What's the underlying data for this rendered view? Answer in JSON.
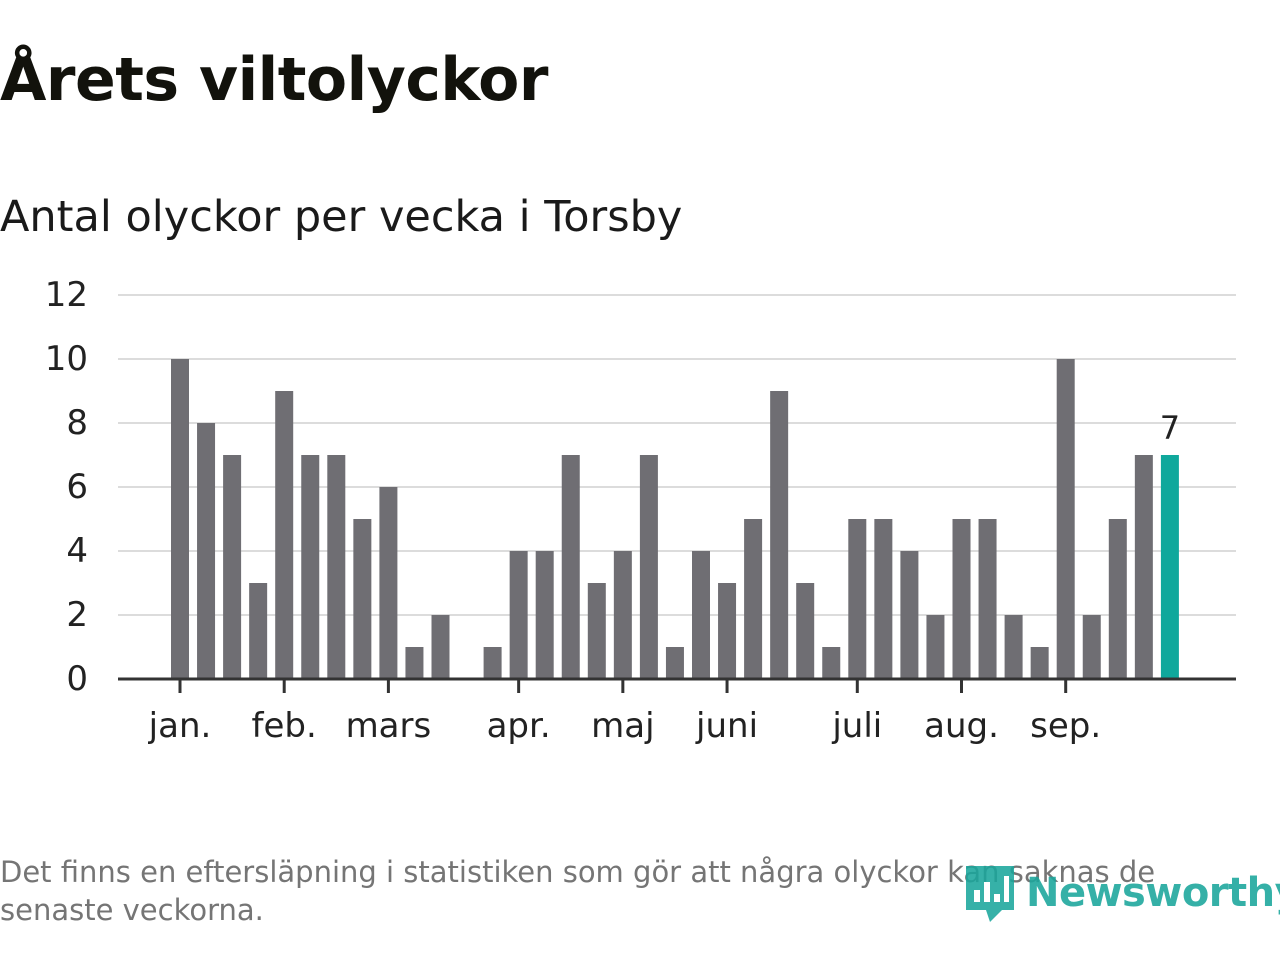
{
  "title": "Årets viltolyckor",
  "subtitle": "Antal olyckor per vecka i Torsby",
  "footnote": "Det finns en eftersläpning i statistiken som gör att några olyckor kan saknas de senaste veckorna.",
  "brand": {
    "name": "Newsworthy",
    "icon": "newsworthy-logo-icon"
  },
  "colors": {
    "bar": "#6f6e73",
    "highlight": "#0fa89c",
    "grid": "#dcdcdc",
    "axis": "#333333",
    "text": "#222222"
  },
  "chart_data": {
    "type": "bar",
    "title": "Antal olyckor per vecka i Torsby",
    "xlabel": "",
    "ylabel": "",
    "ylim": [
      0,
      12
    ],
    "yticks": [
      0,
      2,
      4,
      6,
      8,
      10,
      12
    ],
    "grid": true,
    "month_labels": [
      {
        "label": "jan.",
        "week_index": 0
      },
      {
        "label": "feb.",
        "week_index": 4
      },
      {
        "label": "mars",
        "week_index": 8
      },
      {
        "label": "apr.",
        "week_index": 13
      },
      {
        "label": "maj",
        "week_index": 17
      },
      {
        "label": "juni",
        "week_index": 21
      },
      {
        "label": "juli",
        "week_index": 26
      },
      {
        "label": "aug.",
        "week_index": 30
      },
      {
        "label": "sep.",
        "week_index": 34
      }
    ],
    "values": [
      10,
      8,
      7,
      3,
      9,
      7,
      7,
      5,
      6,
      1,
      2,
      0,
      1,
      4,
      4,
      7,
      3,
      4,
      7,
      1,
      4,
      3,
      5,
      9,
      3,
      1,
      5,
      5,
      4,
      2,
      5,
      5,
      2,
      1,
      10,
      2,
      5,
      7,
      7
    ],
    "highlight_index": 38,
    "highlight_label": "7"
  }
}
